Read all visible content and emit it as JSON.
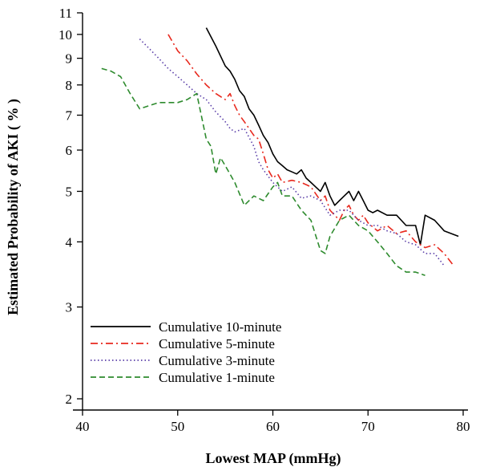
{
  "chart_data": {
    "type": "line",
    "title": "",
    "xlabel": "Lowest MAP (mmHg)",
    "ylabel": "Estimated Probability of AKI ( % )",
    "xlim": [
      40,
      80
    ],
    "ylim": [
      2,
      11
    ],
    "yscale": "log",
    "xticks": [
      40,
      50,
      60,
      70,
      80
    ],
    "yticks": [
      2,
      3,
      4,
      5,
      6,
      7,
      8,
      9,
      10,
      11
    ],
    "grid": false,
    "legend_position": "bottom-left",
    "series": [
      {
        "name": "Cumulative 10-minute",
        "color": "#000000",
        "dash": "solid",
        "x": [
          53,
          54,
          55,
          55.5,
          56,
          56.5,
          57,
          57.5,
          58,
          58.5,
          59,
          59.5,
          60,
          60.5,
          61,
          61.5,
          62,
          62.5,
          63,
          63.5,
          64,
          64.5,
          65,
          65.5,
          66,
          66.5,
          67,
          67.5,
          68,
          68.5,
          69,
          69.5,
          70,
          70.5,
          71,
          72,
          73,
          74,
          75,
          75.5,
          76,
          77,
          78,
          79.5
        ],
        "y": [
          10.3,
          9.5,
          8.7,
          8.5,
          8.2,
          7.8,
          7.6,
          7.2,
          7.0,
          6.7,
          6.4,
          6.2,
          5.9,
          5.7,
          5.6,
          5.5,
          5.45,
          5.4,
          5.5,
          5.3,
          5.2,
          5.1,
          5.0,
          5.2,
          4.9,
          4.7,
          4.8,
          4.9,
          5.0,
          4.8,
          5.0,
          4.8,
          4.6,
          4.55,
          4.6,
          4.5,
          4.5,
          4.3,
          4.3,
          3.95,
          4.5,
          4.4,
          4.2,
          4.1
        ]
      },
      {
        "name": "Cumulative 5-minute",
        "color": "#e8291e",
        "dash": "dashdot",
        "x": [
          49,
          50,
          51,
          52,
          53,
          54,
          55,
          55.5,
          56,
          56.5,
          57,
          57.5,
          58,
          58.5,
          59,
          59.5,
          60,
          60.5,
          61,
          62,
          63,
          64,
          65,
          65.5,
          66,
          66.5,
          67,
          67.5,
          68,
          68.5,
          69,
          69.5,
          70,
          71,
          72,
          73,
          74,
          75,
          76,
          77,
          78,
          79
        ],
        "y": [
          10.0,
          9.3,
          8.9,
          8.4,
          8.0,
          7.7,
          7.5,
          7.7,
          7.3,
          7.0,
          6.8,
          6.6,
          6.4,
          6.3,
          5.9,
          5.5,
          5.3,
          5.4,
          5.2,
          5.25,
          5.2,
          5.1,
          4.8,
          4.9,
          4.6,
          4.5,
          4.4,
          4.6,
          4.7,
          4.5,
          4.4,
          4.5,
          4.35,
          4.2,
          4.3,
          4.15,
          4.2,
          4.0,
          3.9,
          3.95,
          3.8,
          3.6
        ]
      },
      {
        "name": "Cumulative 3-minute",
        "color": "#5a3ea8",
        "dash": "dotted",
        "x": [
          46,
          47,
          48,
          49,
          50,
          51,
          52,
          53,
          54,
          55,
          55.5,
          56,
          57,
          58,
          58.5,
          59,
          60,
          61,
          62,
          63,
          64,
          65,
          66,
          67,
          68,
          69,
          70,
          71,
          72,
          73,
          74,
          75,
          76,
          77,
          78
        ],
        "y": [
          9.8,
          9.4,
          9.0,
          8.6,
          8.3,
          8.0,
          7.7,
          7.5,
          7.1,
          6.8,
          6.6,
          6.5,
          6.6,
          6.1,
          5.7,
          5.5,
          5.2,
          5.0,
          5.1,
          4.85,
          4.9,
          4.8,
          4.5,
          4.6,
          4.6,
          4.4,
          4.3,
          4.3,
          4.2,
          4.15,
          4.0,
          3.95,
          3.8,
          3.8,
          3.6
        ]
      },
      {
        "name": "Cumulative 1-minute",
        "color": "#2e8b2e",
        "dash": "dashed",
        "x": [
          42,
          43,
          44,
          45,
          46,
          47,
          48,
          49,
          50,
          51,
          52,
          53,
          53.5,
          54,
          54.5,
          55,
          56,
          57,
          58,
          59,
          60,
          60.5,
          61,
          62,
          63,
          64,
          65,
          65.5,
          66,
          67,
          68,
          69,
          70,
          71,
          72,
          73,
          74,
          75,
          76
        ],
        "y": [
          8.6,
          8.5,
          8.3,
          7.7,
          7.2,
          7.3,
          7.4,
          7.4,
          7.4,
          7.5,
          7.7,
          6.3,
          6.1,
          5.4,
          5.8,
          5.6,
          5.2,
          4.7,
          4.9,
          4.8,
          5.1,
          5.2,
          4.9,
          4.9,
          4.6,
          4.4,
          3.85,
          3.8,
          4.1,
          4.4,
          4.5,
          4.3,
          4.2,
          4.0,
          3.8,
          3.6,
          3.5,
          3.5,
          3.45
        ]
      }
    ]
  }
}
